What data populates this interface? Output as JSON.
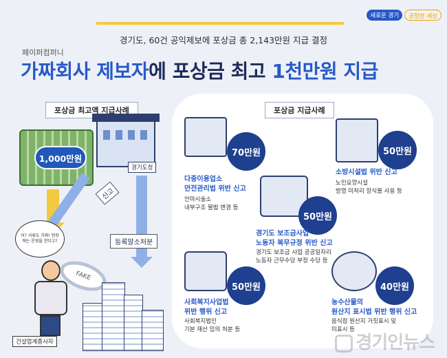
{
  "header": {
    "slogan_left": "새로운 경기",
    "slogan_right": "공정한 세상",
    "subtitle": "경기도, 60건 공익제보에 포상금 총 2,143만원 지급 결정",
    "company": "페이퍼컴퍼니",
    "headline_part1": "가짜회사 제보자",
    "headline_part2": "에 포상금 최고 ",
    "headline_part3": "1천만원 지급"
  },
  "left": {
    "section_label": "포상금 최고액 지급사례",
    "money_badge": "1,000만원",
    "building_tag": "경기도청",
    "report_label": "신고",
    "register_label": "등록말소처분",
    "speech": "어? 서류도 가짜! 현장에는 운영을 한다고?",
    "magnifier_text": "FAKE",
    "person_tag": "건설업계종사자"
  },
  "right": {
    "section_label": "포상금 지급사례",
    "cases": [
      {
        "amount": "70만원",
        "title": [
          "다중이용업소",
          "안전관리법 위반 신고"
        ],
        "desc": [
          "안마시술소",
          "내부구조 불법 변경 등"
        ]
      },
      {
        "amount": "50만원",
        "title": [
          "소방시설법 위반 신고"
        ],
        "desc": [
          "노인요양시설",
          "방염 미처리 장식물 사용 등"
        ]
      },
      {
        "amount": "50만원",
        "title": [
          "경기도 보조금사업",
          "노동자 복무규정 위반 신고"
        ],
        "desc": [
          "경기도 보조금 사업 공공일자리",
          "노동자 근무수당 부정 수당 등"
        ]
      },
      {
        "amount": "50만원",
        "title": [
          "사회복지사업법",
          "위반 행위 신고"
        ],
        "desc": [
          "사회복지법인",
          "기본 재산 임의 처분 등"
        ]
      },
      {
        "amount": "40만원",
        "title": [
          "농수산물의",
          "원산지 표시법 위반 행위 신고"
        ],
        "desc": [
          "음식점 원산지 거짓표시 및",
          "미표시 등"
        ]
      }
    ]
  },
  "watermark": "경기인뉴스"
}
